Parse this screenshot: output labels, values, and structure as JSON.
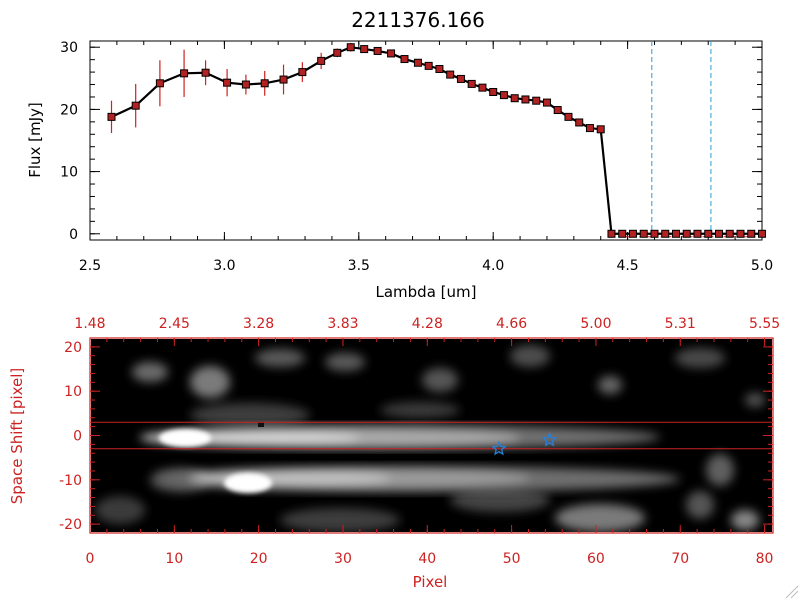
{
  "chart_data": [
    {
      "type": "line",
      "title": "2211376.166",
      "xlabel": "Lambda [um]",
      "ylabel": "Flux [mJy]",
      "xlim": [
        2.5,
        5.0
      ],
      "ylim": [
        -1,
        31
      ],
      "x_ticks": [
        "2.5",
        "3.0",
        "3.5",
        "4.0",
        "4.5",
        "5.0"
      ],
      "y_ticks": [
        "0",
        "10",
        "20",
        "30"
      ],
      "grid": false,
      "colors": {
        "line": "#000000",
        "marker": "#b22222",
        "errorbar": "#cc2222",
        "vline": "#2a9fd6",
        "zero_line": "#cc2222"
      },
      "vlines": [
        4.59,
        4.81
      ],
      "series": [
        {
          "x": [
            2.58,
            2.67,
            2.76,
            2.85,
            2.93,
            3.01,
            3.08,
            3.15,
            3.22,
            3.29,
            3.36,
            3.42,
            3.47,
            3.52,
            3.57,
            3.62,
            3.67,
            3.72,
            3.76,
            3.8,
            3.84,
            3.88,
            3.92,
            3.96,
            4.0,
            4.04,
            4.08,
            4.12,
            4.16,
            4.2,
            4.24,
            4.28,
            4.32,
            4.36,
            4.4,
            4.44,
            4.48,
            4.52,
            4.56,
            4.6,
            4.64,
            4.68,
            4.72,
            4.76,
            4.8,
            4.84,
            4.88,
            4.92,
            4.96,
            5.0
          ],
          "y": [
            18.8,
            20.6,
            24.2,
            25.8,
            25.9,
            24.3,
            24.0,
            24.2,
            24.8,
            26.0,
            27.8,
            29.1,
            30.0,
            29.7,
            29.4,
            29.0,
            28.1,
            27.5,
            27.0,
            26.5,
            25.6,
            24.9,
            24.1,
            23.5,
            22.8,
            22.3,
            21.8,
            21.6,
            21.4,
            21.1,
            19.9,
            18.8,
            17.9,
            17.0,
            16.8,
            0.0,
            0.0,
            0.0,
            0.0,
            0.0,
            0.0,
            0.0,
            0.0,
            0.0,
            0.0,
            0.0,
            0.0,
            0.0,
            0.0,
            0.0
          ],
          "err": [
            2.6,
            3.5,
            3.7,
            3.8,
            2.0,
            2.2,
            1.6,
            2.0,
            2.4,
            1.6,
            1.3,
            0.7,
            0.7,
            0,
            0,
            0,
            0,
            0,
            0,
            0,
            0,
            0,
            0,
            0,
            0,
            0,
            0,
            0,
            0,
            0,
            0,
            0,
            0,
            0,
            0,
            0,
            0,
            0,
            0,
            0,
            0,
            0,
            0,
            0,
            0,
            0,
            0,
            0,
            0,
            0
          ]
        }
      ]
    },
    {
      "type": "heatmap",
      "xlabel": "Pixel",
      "ylabel": "Space Shift [pixel]",
      "xlim": [
        0,
        81
      ],
      "ylim": [
        -22,
        22
      ],
      "x_ticks": [
        "0",
        "10",
        "20",
        "30",
        "40",
        "50",
        "60",
        "70",
        "80"
      ],
      "y_ticks": [
        "-20",
        "-10",
        "0",
        "10",
        "20"
      ],
      "top_ticks": [
        "1.48",
        "2.45",
        "3.28",
        "3.83",
        "4.28",
        "4.66",
        "5.00",
        "5.31",
        "5.55"
      ],
      "colormap": "gray",
      "colors": {
        "axes": "#cc2222",
        "hlines": "#cc2222",
        "star": "#2a7fd6"
      },
      "hlines": [
        3,
        -3
      ],
      "markers": [
        {
          "type": "star",
          "x": 48.5,
          "y": -3
        },
        {
          "type": "star",
          "x": 54.5,
          "y": -1
        }
      ],
      "features": [
        {
          "kind": "trace",
          "x_start": 9,
          "x_end": 66,
          "y": 0,
          "peak": 1.0
        },
        {
          "kind": "trace",
          "x_start": 15,
          "x_end": 68,
          "y": -10,
          "peak": 0.95
        }
      ]
    }
  ]
}
